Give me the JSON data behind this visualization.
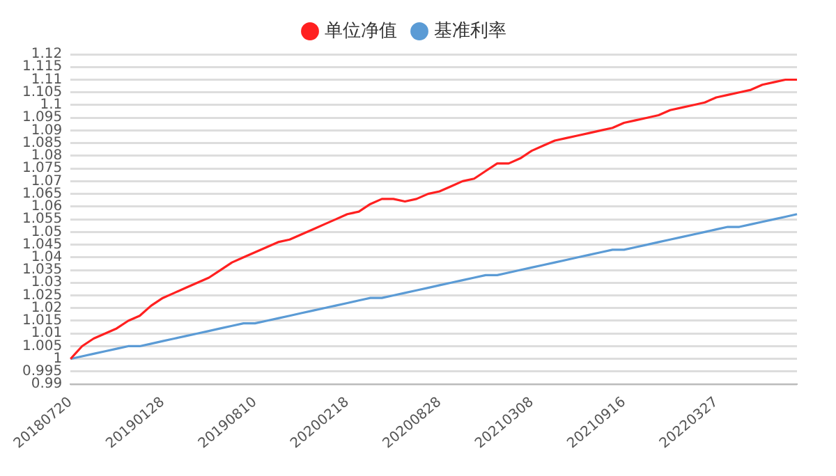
{
  "chart_data": {
    "type": "line",
    "legend": "top",
    "grid": "y",
    "marker": "none",
    "line_style": "solid",
    "categories": [
      "20180720",
      null,
      null,
      null,
      null,
      null,
      null,
      null,
      "20190128",
      null,
      null,
      null,
      null,
      null,
      null,
      null,
      "20190810",
      null,
      null,
      null,
      null,
      null,
      null,
      null,
      "20200218",
      null,
      null,
      null,
      null,
      null,
      null,
      null,
      "20200828",
      null,
      null,
      null,
      null,
      null,
      null,
      null,
      "20210308",
      null,
      null,
      null,
      null,
      null,
      null,
      null,
      "20210916",
      null,
      null,
      null,
      null,
      null,
      null,
      null,
      "20220327",
      null,
      null,
      null,
      null,
      null,
      null,
      null
    ],
    "ylim": [
      0.99,
      1.12
    ],
    "yticks": [
      0.99,
      0.995,
      1,
      1.005,
      1.01,
      1.015,
      1.02,
      1.025,
      1.03,
      1.035,
      1.04,
      1.045,
      1.05,
      1.055,
      1.06,
      1.065,
      1.07,
      1.075,
      1.08,
      1.085,
      1.09,
      1.095,
      1.1,
      1.105,
      1.11,
      1.115,
      1.12
    ],
    "series": [
      {
        "name": "单位净值",
        "color": "#ff2020",
        "values": [
          1.0,
          1.005,
          1.008,
          1.01,
          1.012,
          1.015,
          1.017,
          1.021,
          1.024,
          1.026,
          1.028,
          1.03,
          1.032,
          1.035,
          1.038,
          1.04,
          1.042,
          1.044,
          1.046,
          1.047,
          1.049,
          1.051,
          1.053,
          1.055,
          1.057,
          1.058,
          1.061,
          1.063,
          1.063,
          1.062,
          1.063,
          1.065,
          1.066,
          1.068,
          1.07,
          1.071,
          1.074,
          1.077,
          1.077,
          1.079,
          1.082,
          1.084,
          1.086,
          1.087,
          1.088,
          1.089,
          1.09,
          1.091,
          1.093,
          1.094,
          1.095,
          1.096,
          1.098,
          1.099,
          1.1,
          1.101,
          1.103,
          1.104,
          1.105,
          1.106,
          1.108,
          1.109,
          1.11,
          1.11
        ]
      },
      {
        "name": "基准利率",
        "color": "#5b9bd5",
        "values": [
          1.0,
          1.001,
          1.002,
          1.003,
          1.004,
          1.005,
          1.005,
          1.006,
          1.007,
          1.008,
          1.009,
          1.01,
          1.011,
          1.012,
          1.013,
          1.014,
          1.014,
          1.015,
          1.016,
          1.017,
          1.018,
          1.019,
          1.02,
          1.021,
          1.022,
          1.023,
          1.024,
          1.024,
          1.025,
          1.026,
          1.027,
          1.028,
          1.029,
          1.03,
          1.031,
          1.032,
          1.033,
          1.033,
          1.034,
          1.035,
          1.036,
          1.037,
          1.038,
          1.039,
          1.04,
          1.041,
          1.042,
          1.043,
          1.043,
          1.044,
          1.045,
          1.046,
          1.047,
          1.048,
          1.049,
          1.05,
          1.051,
          1.052,
          1.052,
          1.053,
          1.054,
          1.055,
          1.056,
          1.057
        ]
      }
    ]
  }
}
